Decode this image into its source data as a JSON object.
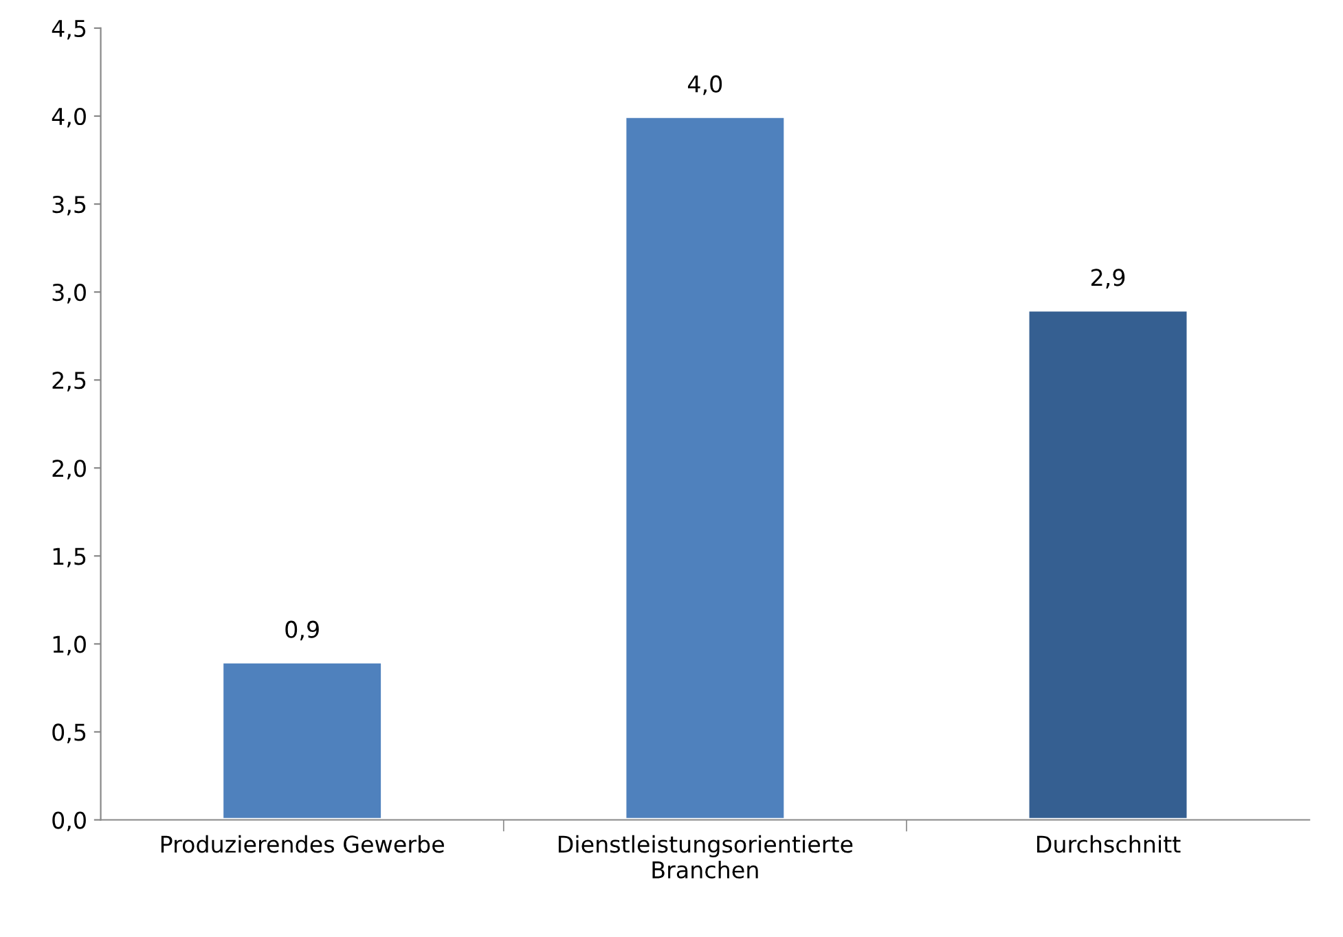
{
  "chart_data": {
    "type": "bar",
    "categories": [
      "Produzierendes Gewerbe",
      "Dienstleistungsorientierte Branchen",
      "Durchschnitt"
    ],
    "values": [
      0.9,
      4.0,
      2.9
    ],
    "colors": [
      "#4f81bd",
      "#4f81bd",
      "#355f91"
    ],
    "ylim": [
      0,
      4.5
    ],
    "yticks": [
      {
        "value": 0,
        "label": "0,0"
      },
      {
        "value": 0.5,
        "label": "0,5"
      },
      {
        "value": 1.0,
        "label": "1,0"
      },
      {
        "value": 1.5,
        "label": "1,5"
      },
      {
        "value": 2.0,
        "label": "2,0"
      },
      {
        "value": 2.5,
        "label": "2,5"
      },
      {
        "value": 3.0,
        "label": "3,0"
      },
      {
        "value": 3.5,
        "label": "3,5"
      },
      {
        "value": 4.0,
        "label": "4,0"
      },
      {
        "value": 4.5,
        "label": "4,5"
      }
    ],
    "value_labels": [
      "0,9",
      "4,0",
      "2,9"
    ],
    "grid": false,
    "legend": false
  }
}
